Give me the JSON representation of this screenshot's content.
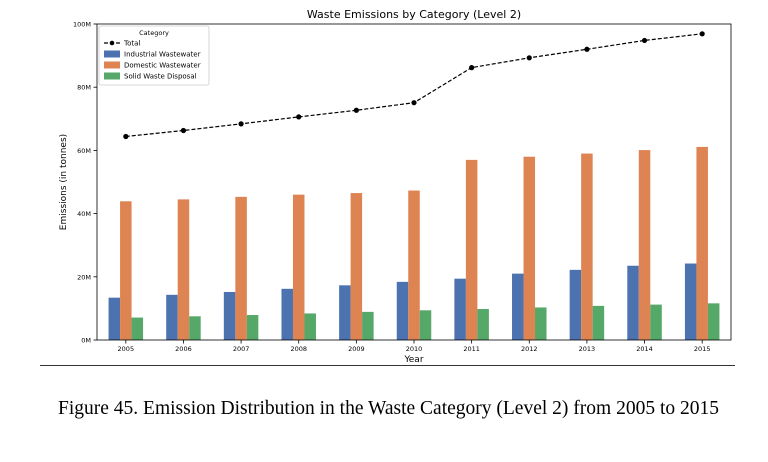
{
  "chart_data": {
    "type": "bar",
    "title": "Waste Emissions by Category (Level 2)",
    "xlabel": "Year",
    "ylabel": "Emissions (in tonnes)",
    "categories": [
      "2005",
      "2006",
      "2007",
      "2008",
      "2009",
      "2010",
      "2011",
      "2012",
      "2013",
      "2014",
      "2015"
    ],
    "ylim": [
      0,
      100000000
    ],
    "yticks": [
      0,
      20000000,
      40000000,
      60000000,
      80000000,
      100000000
    ],
    "ytick_labels": [
      "0M",
      "20M",
      "40M",
      "60M",
      "80M",
      "100M"
    ],
    "grid": false,
    "legend": {
      "title": "Category",
      "placement": "top-left"
    },
    "series": [
      {
        "name": "Industrial Wastewater",
        "kind": "bar",
        "color": "#4c72b0",
        "values": [
          13400000,
          14300000,
          15200000,
          16200000,
          17300000,
          18400000,
          19400000,
          21000000,
          22200000,
          23500000,
          24200000
        ]
      },
      {
        "name": "Domestic Wastewater",
        "kind": "bar",
        "color": "#dd8452",
        "values": [
          43900000,
          44500000,
          45300000,
          46000000,
          46500000,
          47300000,
          57000000,
          58000000,
          59000000,
          60100000,
          61100000
        ]
      },
      {
        "name": "Solid Waste Disposal",
        "kind": "bar",
        "color": "#55a868",
        "values": [
          7100000,
          7500000,
          7900000,
          8400000,
          8900000,
          9400000,
          9800000,
          10300000,
          10800000,
          11200000,
          11600000
        ]
      },
      {
        "name": "Total",
        "kind": "line",
        "color": "#000000",
        "values": [
          64400000,
          66300000,
          68400000,
          70600000,
          72700000,
          75100000,
          86200000,
          89300000,
          92000000,
          94800000,
          96900000
        ]
      }
    ]
  },
  "caption": "Figure 45.  Emission Distribution in the Waste Category (Level 2) from 2005 to 2015"
}
